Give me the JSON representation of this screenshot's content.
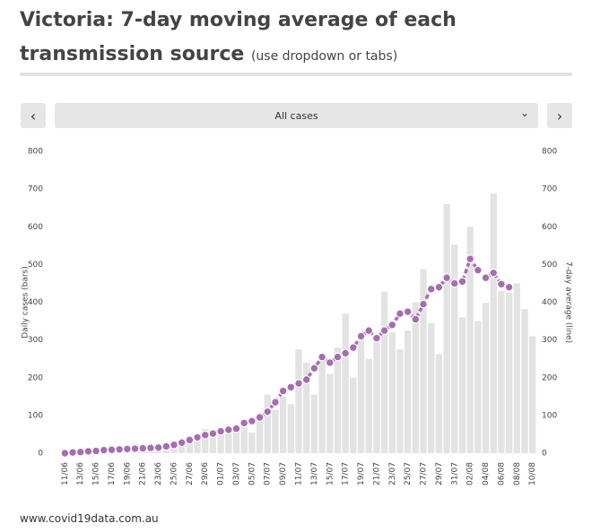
{
  "header": {
    "title": "Victoria: 7-day moving average of each transmission source",
    "subtitle": "(use dropdown or tabs)"
  },
  "controls": {
    "prev": "‹",
    "dropdown": "All cases",
    "dropdown_arrow": "⌄",
    "next": "›"
  },
  "footer": "www.covid19data.com.au",
  "chart_data": {
    "type": "bar",
    "ylabel": "Daily cases (bars)",
    "y2label": "7-day average (line)",
    "categories": [
      "11/06",
      null,
      "13/06",
      null,
      "15/06",
      null,
      "17/06",
      null,
      "19/06",
      null,
      "21/06",
      null,
      "23/06",
      null,
      "25/06",
      null,
      "27/06",
      null,
      "29/06",
      null,
      "01/07",
      null,
      "03/07",
      null,
      "05/07",
      null,
      "07/07",
      null,
      "09/07",
      null,
      "11/07",
      null,
      "13/07",
      null,
      "15/07",
      null,
      "17/07",
      null,
      "19/07",
      null,
      "21/07",
      null,
      "23/07",
      null,
      "25/07",
      null,
      "27/07",
      null,
      "29/07",
      null,
      "31/07",
      null,
      "02/08",
      null,
      "04/08",
      null,
      "06/08",
      null,
      "08/08",
      null,
      "10/08"
    ],
    "series": [
      {
        "type": "bar",
        "color": "#e3e3e3",
        "values": [
          8,
          7,
          12,
          14,
          8,
          14,
          21,
          18,
          13,
          25,
          16,
          19,
          17,
          20,
          33,
          30,
          41,
          49,
          64,
          55,
          60,
          72,
          65,
          70,
          55,
          100,
          155,
          115,
          150,
          130,
          275,
          240,
          155,
          250,
          210,
          280,
          370,
          200,
          320,
          250,
          300,
          428,
          320,
          275,
          325,
          400,
          488,
          345,
          263,
          660,
          553,
          360,
          600,
          350,
          398,
          688,
          430,
          425,
          450,
          382,
          310
        ]
      },
      {
        "type": "line",
        "axis": "y2",
        "color": "#a66db0",
        "values": [
          0,
          2,
          3,
          5,
          6,
          8,
          9,
          10,
          11,
          12,
          13,
          14,
          15,
          18,
          22,
          28,
          35,
          42,
          48,
          52,
          58,
          62,
          65,
          80,
          85,
          95,
          110,
          135,
          165,
          175,
          185,
          195,
          225,
          255,
          240,
          255,
          265,
          280,
          310,
          325,
          305,
          325,
          340,
          370,
          375,
          355,
          395,
          435,
          440,
          465,
          450,
          455,
          515,
          485,
          465,
          478,
          448,
          440,
          null,
          null,
          null
        ]
      }
    ],
    "ylim": [
      0,
      800
    ],
    "yticks": [
      0,
      100,
      200,
      300,
      400,
      500,
      600,
      700,
      800
    ],
    "y2lim": [
      0,
      800
    ],
    "y2ticks": [
      0,
      100,
      200,
      300,
      400,
      500,
      600,
      700,
      800
    ]
  }
}
